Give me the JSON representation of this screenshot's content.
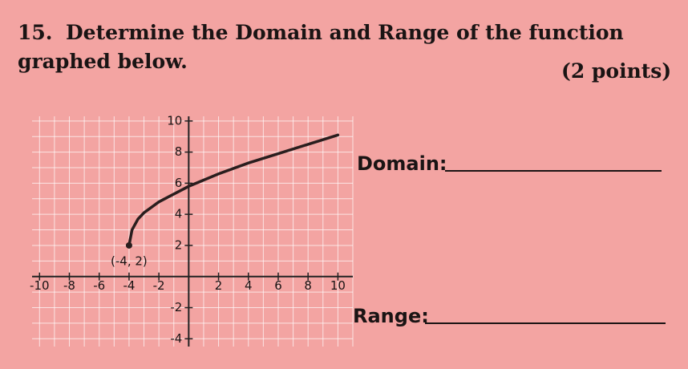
{
  "question": {
    "number": "15.",
    "line1": "Determine the Domain and Range of the function",
    "line2": "graphed below.",
    "points": "(2 points)"
  },
  "graph": {
    "xlim": [
      -10.5,
      11
    ],
    "ylim": [
      -4.5,
      10.3
    ],
    "xticks": [
      -10,
      -8,
      -6,
      -4,
      -2,
      2,
      4,
      6,
      8,
      10
    ],
    "yticks": [
      10,
      8,
      6,
      4,
      2,
      -2,
      -4
    ],
    "start_point": {
      "x": -4,
      "y": 2,
      "label": "(-4, 2)"
    },
    "curve": {
      "x": [
        -4,
        -3.8,
        -3.4,
        -3,
        -2,
        -1,
        0,
        2,
        4,
        6,
        8,
        10
      ],
      "y": [
        2,
        3,
        3.7,
        4.1,
        4.8,
        5.3,
        5.8,
        6.6,
        7.3,
        7.9,
        8.5,
        9.1
      ]
    }
  },
  "answers": {
    "domain": "Domain:",
    "range": "Range:"
  }
}
